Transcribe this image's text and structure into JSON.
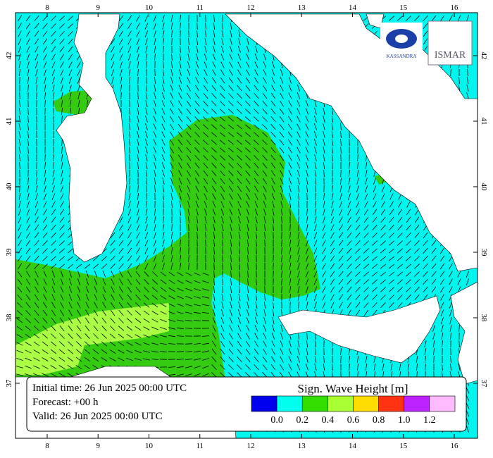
{
  "axes": {
    "lon_ticks": [
      8,
      9,
      10,
      11,
      12,
      13,
      14,
      15,
      16
    ],
    "lat_ticks": [
      37,
      38,
      39,
      40,
      41,
      42
    ]
  },
  "info": {
    "initial": "Initial time: 26 Jun 2025 00:00 UTC",
    "forecast": "Forecast: +00 h",
    "valid": "Valid: 26 Jun 2025 00:00 UTC"
  },
  "legend": {
    "title": "Sign. Wave Height [m]",
    "colors": [
      "#0000ee",
      "#00ffee",
      "#33dd00",
      "#aaff33",
      "#ffdd00",
      "#ff3311",
      "#bb22ff",
      "#ffbbff"
    ],
    "labels": [
      "0.0",
      "0.2",
      "0.4",
      "0.6",
      "0.8",
      "1.0",
      "1.2"
    ]
  },
  "logos": {
    "left": "KASSANDRA",
    "right": "ISMAR"
  }
}
